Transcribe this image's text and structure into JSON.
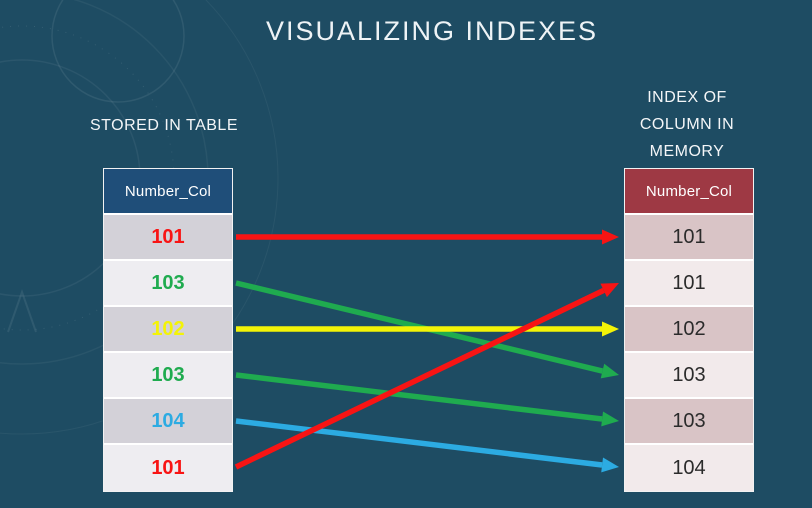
{
  "title": "VISUALIZING INDEXES",
  "left_panel": {
    "label": "STORED IN TABLE",
    "table": {
      "header": "Number_Col",
      "header_bg": "#1f4e79",
      "header_text_color": "#ffffff",
      "rows": [
        {
          "value": "101",
          "color": "#f81414"
        },
        {
          "value": "103",
          "color": "#1fab4f"
        },
        {
          "value": "102",
          "color": "#f3f307"
        },
        {
          "value": "103",
          "color": "#1fab4f"
        },
        {
          "value": "104",
          "color": "#2cabe2"
        },
        {
          "value": "101",
          "color": "#f81414"
        }
      ]
    }
  },
  "right_panel": {
    "label": "INDEX OF COLUMN IN MEMORY",
    "table": {
      "header": "Number_Col",
      "header_bg": "#9e3944",
      "header_text_color": "#ffffff",
      "rows": [
        {
          "value": "101"
        },
        {
          "value": "101"
        },
        {
          "value": "102"
        },
        {
          "value": "103"
        },
        {
          "value": "103"
        },
        {
          "value": "104"
        }
      ]
    }
  },
  "arrows": [
    {
      "from_row": 0,
      "to_row": 0,
      "color": "#f81414"
    },
    {
      "from_row": 1,
      "to_row": 3,
      "color": "#1fab4f"
    },
    {
      "from_row": 2,
      "to_row": 2,
      "color": "#f3f307"
    },
    {
      "from_row": 3,
      "to_row": 4,
      "color": "#1fab4f"
    },
    {
      "from_row": 4,
      "to_row": 5,
      "color": "#2cabe2"
    },
    {
      "from_row": 5,
      "to_row": 1,
      "color": "#f81414"
    }
  ],
  "colors": {
    "background": "#1e4c63",
    "left_row_dark": "#d3d1d8",
    "left_row_light": "#eeedf1",
    "right_row_dark": "#d9c4c6",
    "right_row_light": "#f2eaeb"
  }
}
